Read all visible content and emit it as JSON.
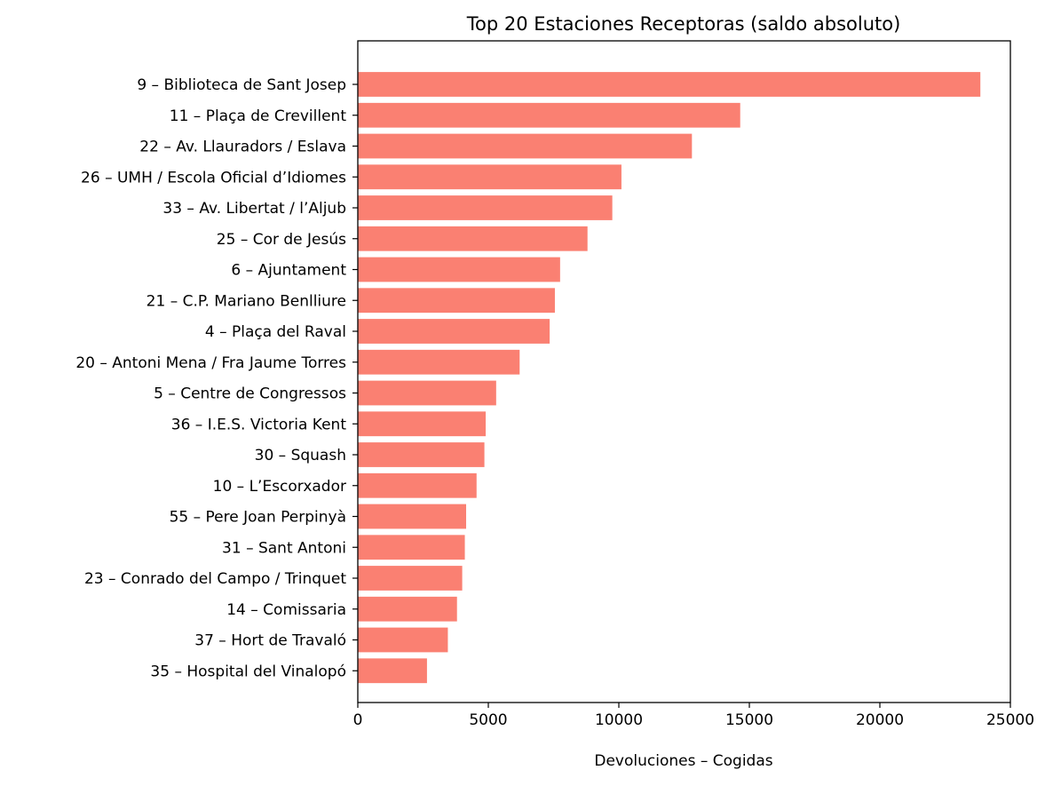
{
  "chart_data": {
    "type": "bar",
    "orientation": "horizontal",
    "title": "Top 20 Estaciones Receptoras (saldo absoluto)",
    "xlabel": "Devoluciones – Cogidas",
    "ylabel": "",
    "xlim": [
      0,
      25000
    ],
    "xticks": [
      0,
      5000,
      10000,
      15000,
      20000,
      25000
    ],
    "xtick_labels": [
      "0",
      "5000",
      "10000",
      "15000",
      "20000",
      "25000"
    ],
    "grid": false,
    "bar_color": "#FA8072",
    "categories": [
      "9 – Biblioteca de Sant Josep",
      "11 – Plaça de Crevillent",
      "22 – Av. Llauradors / Eslava",
      "26 – UMH / Escola Oficial d’Idiomes",
      "33 – Av. Libertat / l’Aljub",
      "25 – Cor de Jesús",
      "6 – Ajuntament",
      "21 – C.P. Mariano Benlliure",
      "4 – Plaça del Raval",
      "20 – Antoni Mena / Fra Jaume Torres",
      "5 – Centre de Congressos",
      "36 – I.E.S. Victoria Kent",
      "30 – Squash",
      "10 – L’Escorxador",
      "55 – Pere Joan Perpinyà",
      "31 – Sant Antoni",
      "23 – Conrado del Campo / Trinquet",
      "14 – Comissaria",
      "37 – Hort de Travaló",
      "35 – Hospital del Vinalopó"
    ],
    "values": [
      23850,
      14650,
      12800,
      10100,
      9750,
      8800,
      7750,
      7550,
      7350,
      6200,
      5300,
      4900,
      4850,
      4550,
      4150,
      4100,
      4000,
      3800,
      3450,
      2650
    ]
  }
}
